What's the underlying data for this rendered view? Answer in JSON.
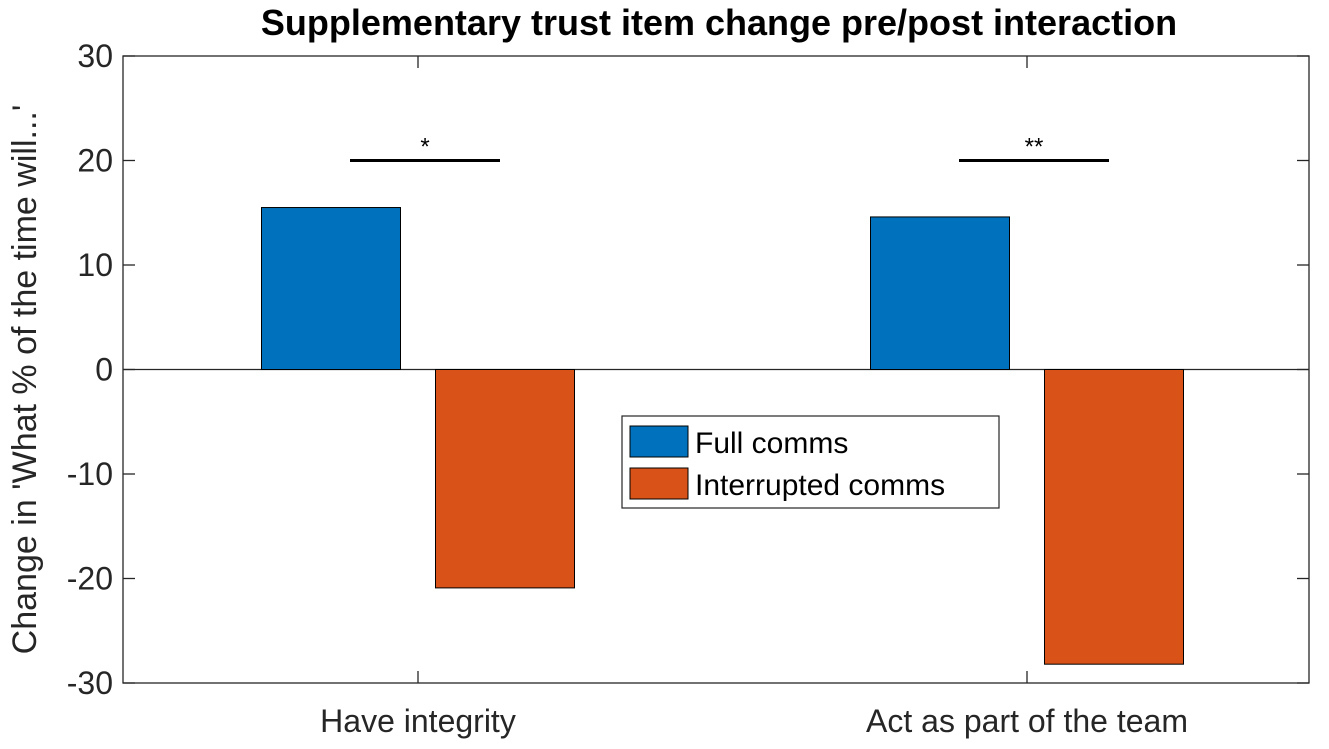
{
  "chart_data": {
    "type": "bar",
    "title": "Supplementary trust item change pre/post interaction",
    "xlabel": "",
    "ylabel": "Change in 'What % of the time will...'",
    "ylim": [
      -30,
      30
    ],
    "yticks": [
      -30,
      -20,
      -10,
      0,
      10,
      20,
      30
    ],
    "categories": [
      "Have integrity",
      "Act as part of the team"
    ],
    "series": [
      {
        "name": "Full comms",
        "color": "#0072BD",
        "values": [
          15.5,
          14.6
        ]
      },
      {
        "name": "Interrupted comms",
        "color": "#D95319",
        "values": [
          -20.9,
          -28.2
        ]
      }
    ],
    "significance": [
      {
        "category": "Have integrity",
        "label": "*",
        "y": 20
      },
      {
        "category": "Act as part of the team",
        "label": "**",
        "y": 20
      }
    ],
    "legend_position": "center",
    "grid": false
  }
}
